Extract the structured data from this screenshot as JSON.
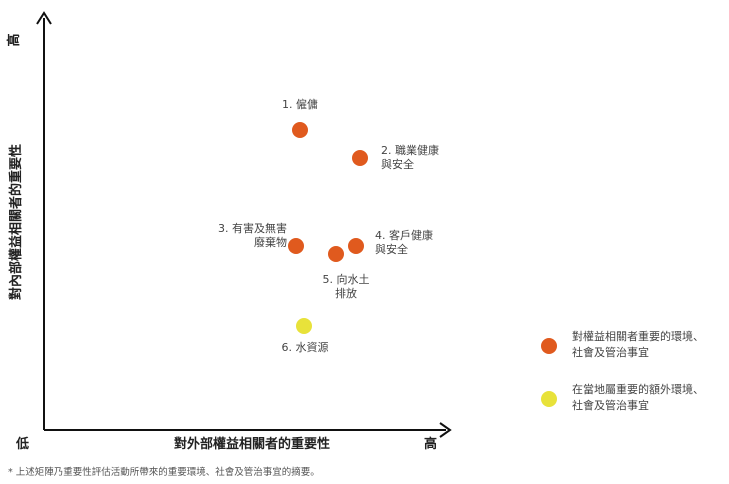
{
  "chart_data": {
    "type": "scatter",
    "xlabel": "對外部權益相關者的重要性",
    "ylabel": "對內部權益相關者的重要性",
    "x_low_label": "低",
    "x_high_label": "高",
    "y_high_label": "高",
    "xlim": [
      0,
      100
    ],
    "ylim": [
      0,
      100
    ],
    "grid": false,
    "legend_position": "right",
    "series": [
      {
        "name": "對權益相關者重要的環境、社會及管治事宜",
        "color": "#e05a1e",
        "points": [
          {
            "label": [
              "1. 僱傭"
            ],
            "x": 64,
            "y": 75
          },
          {
            "label": [
              "2. 職業健康",
              "與安全"
            ],
            "x": 79,
            "y": 68
          },
          {
            "label": [
              "3. 有害及無害",
              "廢棄物"
            ],
            "x": 63,
            "y": 46
          },
          {
            "label": [
              "4. 客戶健康",
              "與安全"
            ],
            "x": 78,
            "y": 46
          },
          {
            "label": [
              "5. 向水土",
              "排放"
            ],
            "x": 73,
            "y": 44
          }
        ]
      },
      {
        "name": "在當地屬重要的額外環境、社會及管治事宜",
        "color": "#e8e23a",
        "points": [
          {
            "label": [
              "6. 水資源"
            ],
            "x": 65,
            "y": 26
          }
        ]
      }
    ]
  },
  "legend": [
    {
      "lines": [
        "對權益相關者重要的環境、",
        "社會及管治事宜"
      ],
      "color": "#e05a1e"
    },
    {
      "lines": [
        "在當地屬重要的額外環境、",
        "社會及管治事宜"
      ],
      "color": "#e8e23a"
    }
  ],
  "footnote": "* 上述矩陣乃重要性評估活動所帶來的重要環境、社會及管治事宜的摘要。"
}
